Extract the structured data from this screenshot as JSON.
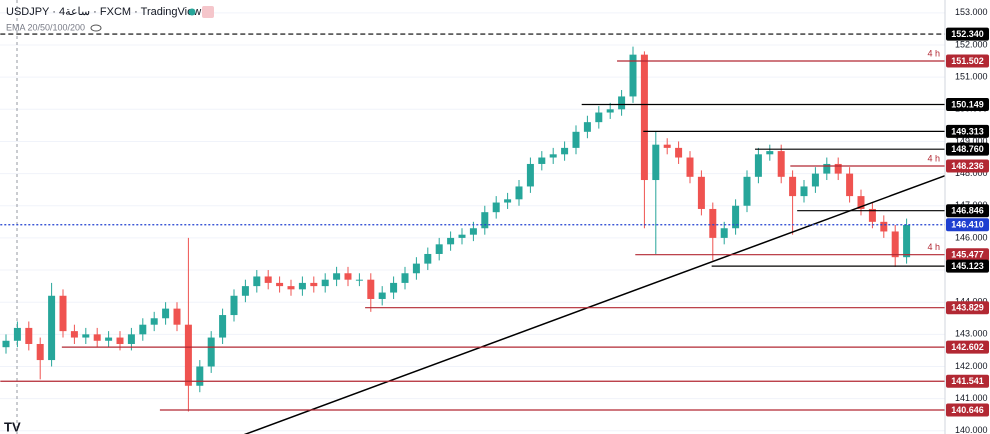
{
  "chart_data": {
    "type": "candlestick",
    "title": "USDJPY · 4ساعة · FXCM · TradingView",
    "subtitle": "EMA 20/50/100/200",
    "up_color": "#26a69a",
    "down_color": "#ef5350",
    "ylim": [
      139.9,
      153.4
    ],
    "yticks": [
      {
        "value": 140,
        "label": "140.000"
      },
      {
        "value": 141,
        "label": "141.000"
      },
      {
        "value": 142,
        "label": "142.000"
      },
      {
        "value": 143,
        "label": "143.000"
      },
      {
        "value": 144,
        "label": "144.000"
      },
      {
        "value": 145,
        "label": "145.000"
      },
      {
        "value": 146,
        "label": "146.000"
      },
      {
        "value": 147,
        "label": "147.000"
      },
      {
        "value": 148,
        "label": "148.000"
      },
      {
        "value": 149,
        "label": "149.000"
      },
      {
        "value": 150,
        "label": "150.000"
      },
      {
        "value": 151,
        "label": "151.000"
      },
      {
        "value": 152,
        "label": "152.000"
      },
      {
        "value": 153,
        "label": "153.000"
      }
    ],
    "open": [
      142.6,
      142.8,
      143.2,
      142.7,
      142.2,
      144.2,
      143.1,
      142.9,
      143.0,
      142.8,
      142.9,
      142.7,
      143.0,
      143.3,
      143.5,
      143.8,
      143.3,
      141.4,
      142.0,
      142.9,
      143.6,
      144.2,
      144.5,
      144.8,
      144.6,
      144.5,
      144.4,
      144.6,
      144.5,
      144.7,
      144.9,
      144.7,
      144.7,
      144.1,
      144.3,
      144.6,
      144.9,
      145.2,
      145.5,
      145.8,
      146.0,
      146.1,
      146.3,
      146.8,
      147.1,
      147.2,
      147.6,
      148.3,
      148.5,
      148.6,
      148.8,
      149.3,
      149.6,
      149.9,
      150.0,
      150.4,
      151.7,
      147.8,
      148.9,
      148.8,
      148.5,
      147.9,
      146.9,
      146.0,
      146.3,
      147.0,
      147.9,
      148.6,
      148.7,
      147.9,
      147.3,
      147.6,
      148.0,
      148.3,
      148.0,
      147.3,
      146.9,
      146.5,
      146.2,
      145.4
    ],
    "high": [
      143.0,
      143.4,
      143.4,
      142.9,
      144.6,
      144.4,
      143.3,
      143.2,
      143.2,
      143.1,
      143.1,
      143.2,
      143.5,
      143.7,
      144.0,
      144.0,
      146.0,
      142.2,
      143.1,
      143.8,
      144.4,
      144.7,
      145.0,
      145.0,
      144.8,
      144.7,
      144.8,
      144.8,
      144.9,
      145.1,
      145.1,
      144.9,
      144.9,
      144.5,
      144.8,
      145.1,
      145.4,
      145.7,
      146.0,
      146.2,
      146.3,
      146.5,
      147.0,
      147.3,
      147.4,
      147.8,
      148.5,
      148.7,
      148.8,
      149.0,
      149.5,
      149.8,
      150.1,
      150.2,
      150.6,
      151.95,
      151.8,
      149.3,
      149.1,
      149.0,
      148.7,
      148.1,
      147.1,
      146.5,
      147.2,
      148.1,
      148.8,
      148.9,
      148.9,
      148.1,
      147.8,
      148.2,
      148.5,
      148.5,
      148.2,
      147.5,
      147.1,
      146.7,
      146.4,
      146.6
    ],
    "low": [
      142.4,
      142.6,
      142.5,
      141.6,
      142.0,
      142.9,
      142.7,
      142.7,
      142.6,
      142.6,
      142.5,
      142.5,
      142.8,
      143.1,
      143.3,
      143.1,
      140.6,
      141.2,
      141.8,
      142.7,
      143.4,
      144.0,
      144.3,
      144.4,
      144.3,
      144.2,
      144.2,
      144.3,
      144.3,
      144.5,
      144.5,
      144.5,
      143.7,
      143.9,
      144.1,
      144.4,
      144.7,
      145.0,
      145.3,
      145.6,
      145.8,
      145.9,
      146.1,
      146.6,
      146.9,
      147.0,
      147.4,
      148.1,
      148.3,
      148.4,
      148.6,
      149.1,
      149.4,
      149.7,
      149.8,
      150.2,
      146.3,
      145.5,
      148.6,
      148.3,
      147.7,
      146.7,
      145.3,
      145.8,
      146.1,
      146.8,
      147.7,
      148.4,
      147.7,
      146.1,
      147.1,
      147.4,
      147.8,
      147.8,
      147.1,
      146.7,
      146.3,
      146.0,
      145.1,
      145.2
    ],
    "close": [
      142.8,
      143.2,
      142.7,
      142.2,
      144.2,
      143.1,
      142.9,
      143.0,
      142.8,
      142.9,
      142.7,
      143.0,
      143.3,
      143.5,
      143.8,
      143.3,
      141.4,
      142.0,
      142.9,
      143.6,
      144.2,
      144.5,
      144.8,
      144.6,
      144.5,
      144.4,
      144.6,
      144.5,
      144.7,
      144.9,
      144.7,
      144.7,
      144.1,
      144.3,
      144.6,
      144.9,
      145.2,
      145.5,
      145.8,
      146.0,
      146.1,
      146.3,
      146.8,
      147.1,
      147.2,
      147.6,
      148.3,
      148.5,
      148.6,
      148.8,
      149.3,
      149.6,
      149.9,
      150.0,
      150.4,
      151.7,
      147.8,
      148.9,
      148.8,
      148.5,
      147.9,
      146.9,
      146.0,
      146.3,
      147.0,
      147.9,
      148.6,
      148.7,
      147.9,
      147.3,
      147.6,
      148.0,
      148.3,
      148.0,
      147.3,
      146.9,
      146.5,
      146.2,
      145.4,
      146.4
    ],
    "levels": [
      {
        "price": {
          "value": 152.34,
          "label": "152.340"
        },
        "color": "#000000",
        "style": "dashed",
        "from": -0.5
      },
      {
        "price": {
          "value": 151.502,
          "label": "151.502"
        },
        "color": "#b22833",
        "style": "solid",
        "from": 53.6,
        "note": "4 h"
      },
      {
        "price": {
          "value": 150.149,
          "label": "150.149"
        },
        "color": "#000000",
        "style": "solid",
        "from": 50.5
      },
      {
        "price": {
          "value": 149.313,
          "label": "149.313"
        },
        "color": "#000000",
        "style": "solid",
        "from": 55.9
      },
      {
        "price": {
          "value": 148.76,
          "label": "148.760"
        },
        "color": "#000000",
        "style": "solid",
        "from": 65.7
      },
      {
        "price": {
          "value": 148.236,
          "label": "148.236"
        },
        "color": "#b22833",
        "style": "solid",
        "from": 68.8,
        "note": "4 h"
      },
      {
        "price": {
          "value": 146.846,
          "label": "146.846"
        },
        "color": "#000000",
        "style": "solid",
        "from": 69.4
      },
      {
        "price": {
          "value": 146.41,
          "label": "146.410"
        },
        "color": "#1e3fd0",
        "style": "dotted",
        "from": -0.5
      },
      {
        "price": {
          "value": 145.477,
          "label": "145.477"
        },
        "color": "#b22833",
        "style": "solid",
        "from": 55.2,
        "note": "4 h"
      },
      {
        "price": {
          "value": 145.123,
          "label": "145.123"
        },
        "color": "#000000",
        "style": "solid",
        "from": 61.9
      },
      {
        "price": {
          "value": 143.829,
          "label": "143.829"
        },
        "color": "#b22833",
        "style": "solid",
        "from": 31.5
      },
      {
        "price": {
          "value": 142.602,
          "label": "142.602"
        },
        "color": "#b22833",
        "style": "solid",
        "from": 4.9
      },
      {
        "price": {
          "value": 141.541,
          "label": "141.541"
        },
        "color": "#b22833",
        "style": "solid",
        "from": -0.5
      },
      {
        "price": {
          "value": 140.646,
          "label": "140.646"
        },
        "color": "#b22833",
        "style": "solid",
        "from": 13.5
      }
    ],
    "trendline": {
      "x": [
        19.6,
        82.4
      ],
      "y": [
        139.71,
        147.94
      ],
      "color": "#000000"
    }
  }
}
